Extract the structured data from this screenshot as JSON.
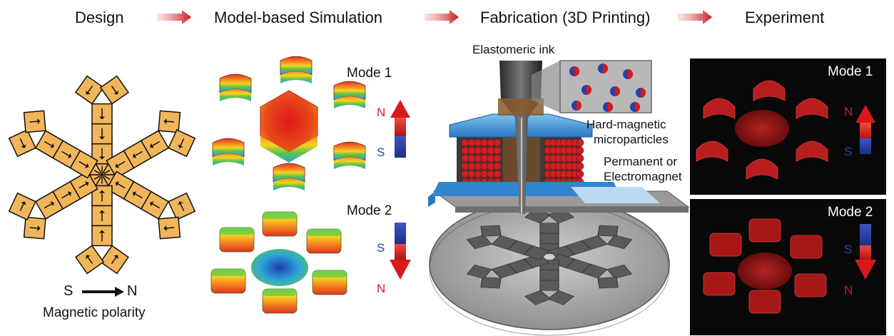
{
  "stages": [
    "Design",
    "Model-based Simulation",
    "Fabrication (3D Printing)",
    "Experiment"
  ],
  "design": {
    "polarity_start": "S",
    "polarity_end": "N",
    "caption": "Magnetic polarity"
  },
  "simulation": {
    "mode1_label": "Mode 1",
    "mode2_label": "Mode 2",
    "mode1_top_pole": "N",
    "mode1_bottom_pole": "S",
    "mode2_top_pole": "S",
    "mode2_bottom_pole": "N"
  },
  "fabrication": {
    "ink_label": "Elastomeric ink",
    "particles_label_1": "Hard-magnetic",
    "particles_label_2": "microparticles",
    "magnet_label_1": "Permanent or",
    "magnet_label_2": "Electromagnet"
  },
  "experiment": {
    "mode1_label": "Mode 1",
    "mode2_label": "Mode 2",
    "mode1_top_pole": "N",
    "mode1_bottom_pole": "S",
    "mode2_top_pole": "S",
    "mode2_bottom_pole": "N"
  },
  "colors": {
    "stage_arrow": "#c8141e",
    "panel_fill": "#f2b65a",
    "north": "#d7191c",
    "south": "#2b3fa8",
    "nozzle_blue": "#3a8fd4",
    "magnet_red": "#cc1f24",
    "substrate": "#b5b5b5",
    "experiment_bg": "#0a0a0a"
  }
}
